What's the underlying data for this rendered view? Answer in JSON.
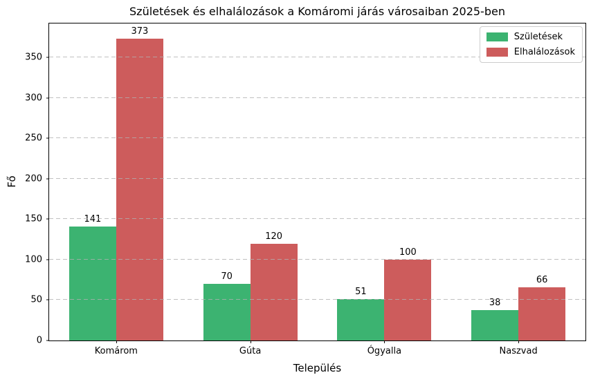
{
  "title": "Születések és elhalálozások a Komáromi járás városaiban 2025-ben",
  "chart_data": {
    "type": "bar",
    "categories": [
      "Komárom",
      "Gúta",
      "Ógyalla",
      "Naszvad"
    ],
    "series": [
      {
        "name": "Születések",
        "color": "#3cb371",
        "values": [
          141,
          70,
          51,
          38
        ]
      },
      {
        "name": "Elhalálozások",
        "color": "#cd5c5c",
        "values": [
          373,
          120,
          100,
          66
        ]
      }
    ],
    "xlabel": "Település",
    "ylabel": "Fő",
    "ylim": [
      0,
      392
    ],
    "yticks": [
      0,
      50,
      100,
      150,
      200,
      250,
      300,
      350
    ],
    "grid": "horizontal dashed",
    "legend_position": "upper right"
  }
}
